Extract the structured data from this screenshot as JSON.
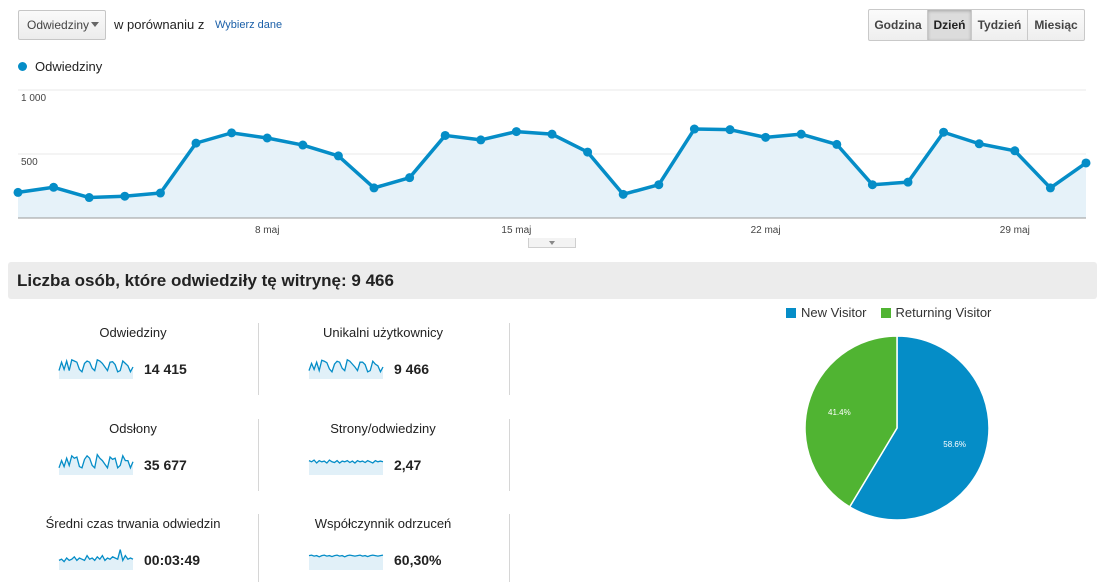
{
  "controls": {
    "metric_select": "Odwiedziny",
    "compare_text": "w porównaniu z",
    "choose_link": "Wybierz dane",
    "periods": [
      {
        "label": "Godzina",
        "active": false
      },
      {
        "label": "Dzień",
        "active": true
      },
      {
        "label": "Tydzień",
        "active": false
      },
      {
        "label": "Miesiąc",
        "active": false
      }
    ]
  },
  "colors": {
    "line": "#058dc7",
    "area": "#e6f2f9",
    "new_visitor": "#058dc7",
    "returning_visitor": "#50b432"
  },
  "chart_data": [
    {
      "type": "line",
      "series": [
        {
          "name": "Odwiedziny",
          "values": [
            200,
            240,
            160,
            170,
            195,
            585,
            665,
            625,
            570,
            485,
            235,
            315,
            645,
            610,
            675,
            655,
            515,
            185,
            260,
            695,
            690,
            630,
            655,
            575,
            260,
            280,
            670,
            580,
            525,
            235,
            430
          ]
        }
      ],
      "x_labels": [
        {
          "index": 7,
          "label": "8 maj"
        },
        {
          "index": 14,
          "label": "15 maj"
        },
        {
          "index": 21,
          "label": "22 maj"
        },
        {
          "index": 28,
          "label": "29 maj"
        }
      ],
      "y_ticks": [
        {
          "value": 1000,
          "label": "1 000"
        },
        {
          "value": 500,
          "label": "500"
        }
      ],
      "ylim": [
        0,
        1000
      ],
      "grid": true,
      "legend": "top-left"
    },
    {
      "type": "pie",
      "labels": [
        "New Visitor",
        "Returning Visitor"
      ],
      "values": [
        58.6,
        41.4
      ],
      "slice_labels": [
        "58.6%",
        "41.4%"
      ],
      "legend": "top"
    }
  ],
  "summary": {
    "title": "Liczba osób, które odwiedziły tę witrynę: 9 466"
  },
  "metrics": [
    {
      "label": "Odwiedziny",
      "value": "14 415",
      "spark": [
        0.35,
        0.7,
        0.4,
        0.75,
        0.35,
        0.8,
        0.75,
        0.7,
        0.4,
        0.3,
        0.65,
        0.75,
        0.7,
        0.45,
        0.35,
        0.8,
        0.75,
        0.65,
        0.5,
        0.35,
        0.7,
        0.72,
        0.6,
        0.3,
        0.35,
        0.75,
        0.65,
        0.55,
        0.3,
        0.5
      ]
    },
    {
      "label": "Unikalni użytkownicy",
      "value": "9 466",
      "spark": [
        0.35,
        0.65,
        0.4,
        0.7,
        0.35,
        0.78,
        0.74,
        0.68,
        0.42,
        0.3,
        0.62,
        0.74,
        0.7,
        0.45,
        0.35,
        0.8,
        0.74,
        0.62,
        0.5,
        0.35,
        0.7,
        0.7,
        0.6,
        0.3,
        0.35,
        0.74,
        0.62,
        0.55,
        0.3,
        0.5
      ]
    },
    {
      "label": "Odsłony",
      "value": "35 677",
      "spark": [
        0.3,
        0.6,
        0.35,
        0.7,
        0.4,
        0.8,
        0.7,
        0.75,
        0.35,
        0.3,
        0.65,
        0.8,
        0.7,
        0.4,
        0.3,
        0.85,
        0.7,
        0.6,
        0.45,
        0.3,
        0.75,
        0.65,
        0.7,
        0.3,
        0.4,
        0.8,
        0.6,
        0.6,
        0.3,
        0.55
      ]
    },
    {
      "label": "Strony/odwiedziny",
      "value": "2,47",
      "spark": [
        0.6,
        0.55,
        0.62,
        0.5,
        0.6,
        0.55,
        0.58,
        0.5,
        0.62,
        0.55,
        0.52,
        0.6,
        0.5,
        0.58,
        0.55,
        0.6,
        0.52,
        0.58,
        0.5,
        0.6,
        0.55,
        0.58,
        0.52,
        0.6,
        0.55,
        0.5,
        0.6,
        0.55,
        0.58,
        0.55
      ]
    },
    {
      "label": "Średni czas trwania odwiedzin",
      "value": "00:03:49",
      "spark": [
        0.4,
        0.45,
        0.35,
        0.5,
        0.4,
        0.45,
        0.55,
        0.4,
        0.5,
        0.45,
        0.4,
        0.6,
        0.45,
        0.5,
        0.4,
        0.55,
        0.45,
        0.6,
        0.4,
        0.5,
        0.45,
        0.55,
        0.5,
        0.45,
        0.85,
        0.4,
        0.6,
        0.45,
        0.5,
        0.45
      ]
    },
    {
      "label": "Współczynnik odrzuceń",
      "value": "60,30%",
      "spark": [
        0.6,
        0.62,
        0.58,
        0.6,
        0.55,
        0.6,
        0.62,
        0.58,
        0.6,
        0.56,
        0.6,
        0.62,
        0.58,
        0.6,
        0.55,
        0.6,
        0.62,
        0.6,
        0.58,
        0.6,
        0.62,
        0.58,
        0.6,
        0.56,
        0.6,
        0.62,
        0.6,
        0.58,
        0.6,
        0.62
      ]
    }
  ]
}
